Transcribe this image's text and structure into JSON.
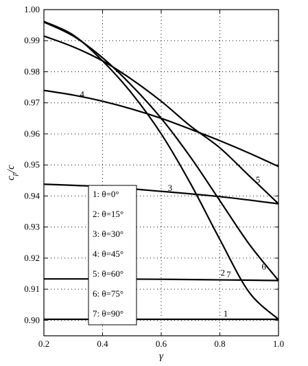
{
  "chart_data": {
    "type": "line",
    "title": "",
    "xlabel": "γ",
    "ylabel_main": "c",
    "ylabel_sub": "p",
    "ylabel_tail": "/c",
    "xlim": [
      0.2,
      1.0
    ],
    "ylim": [
      0.895,
      1.0
    ],
    "xticks": [
      "0.2",
      "0.4",
      "0.6",
      "0.8",
      "1.0"
    ],
    "yticks": [
      "0.90",
      "0.91",
      "0.92",
      "0.93",
      "0.94",
      "0.95",
      "0.96",
      "0.97",
      "0.98",
      "0.99",
      "1.00"
    ],
    "grid": true,
    "legend_position": "center-left",
    "series": [
      {
        "name": "1: θ=0°",
        "label": "1",
        "x": [
          0.2,
          0.4,
          0.6,
          0.8,
          1.0
        ],
        "y": [
          0.9003,
          0.9003,
          0.9003,
          0.9003,
          0.9003
        ]
      },
      {
        "name": "2: θ=15°",
        "label": "2",
        "x": [
          0.2,
          0.4,
          0.6,
          0.8,
          1.0
        ],
        "y": [
          0.9133,
          0.9133,
          0.9132,
          0.913,
          0.9128
        ]
      },
      {
        "name": "3: θ=30°",
        "label": "3",
        "x": [
          0.2,
          0.4,
          0.6,
          0.8,
          1.0
        ],
        "y": [
          0.9438,
          0.943,
          0.9415,
          0.9398,
          0.9375
        ]
      },
      {
        "name": "4: θ=45°",
        "label": "4",
        "x": [
          0.2,
          0.3,
          0.4,
          0.5,
          0.6,
          0.7,
          0.8,
          0.9,
          1.0
        ],
        "y": [
          0.974,
          0.9725,
          0.9705,
          0.968,
          0.965,
          0.9615,
          0.9578,
          0.9538,
          0.9495
        ]
      },
      {
        "name": "5: θ=60°",
        "label": "5",
        "x": [
          0.2,
          0.3,
          0.4,
          0.5,
          0.6,
          0.7,
          0.8,
          0.9,
          1.0
        ],
        "y": [
          0.9915,
          0.988,
          0.9835,
          0.9775,
          0.9705,
          0.9625,
          0.9555,
          0.9465,
          0.9375
        ]
      },
      {
        "name": "6: θ=75°",
        "label": "6",
        "x": [
          0.2,
          0.3,
          0.4,
          0.5,
          0.6,
          0.7,
          0.8,
          0.9,
          1.0
        ],
        "y": [
          0.996,
          0.9915,
          0.9845,
          0.9755,
          0.965,
          0.9525,
          0.9385,
          0.9245,
          0.9128
        ]
      },
      {
        "name": "7: θ=90°",
        "label": "7",
        "x": [
          0.2,
          0.3,
          0.4,
          0.5,
          0.6,
          0.7,
          0.8,
          0.9,
          1.0
        ],
        "y": [
          0.9962,
          0.9918,
          0.9835,
          0.973,
          0.96,
          0.944,
          0.926,
          0.909,
          0.9003
        ]
      }
    ],
    "curve_labels": [
      {
        "text": "1",
        "x": 0.82,
        "y": 0.9012
      },
      {
        "text": "2",
        "x": 0.81,
        "y": 0.9143
      },
      {
        "text": "3",
        "x": 0.63,
        "y": 0.9416
      },
      {
        "text": "4",
        "x": 0.33,
        "y": 0.9718
      },
      {
        "text": "5",
        "x": 0.93,
        "y": 0.9443
      },
      {
        "text": "6",
        "x": 0.95,
        "y": 0.9163
      },
      {
        "text": "7",
        "x": 0.83,
        "y": 0.9138
      }
    ]
  }
}
